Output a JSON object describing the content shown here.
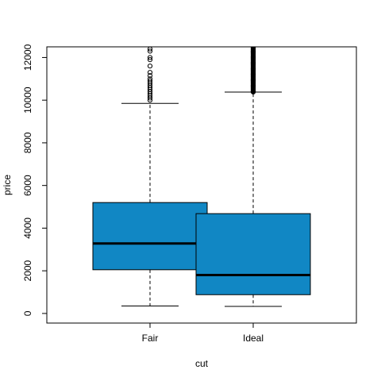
{
  "chart_data": {
    "type": "box",
    "xlabel": "cut",
    "ylabel": "price",
    "ylim": [
      -450,
      12500
    ],
    "y_ticks": [
      0,
      2000,
      4000,
      6000,
      8000,
      10000,
      12000
    ],
    "box_color": "#1187C4",
    "categories": [
      "Fair",
      "Ideal"
    ],
    "boxes": [
      {
        "category": "Fair",
        "whisker_low": 350,
        "q1": 2050,
        "median": 3280,
        "q3": 5200,
        "whisker_high": 9850,
        "outliers": [
          10000,
          10100,
          10200,
          10300,
          10400,
          10500,
          10600,
          10700,
          10800,
          10900,
          11000,
          11150,
          11300,
          11600,
          11900,
          12000,
          12300,
          12400
        ]
      },
      {
        "category": "Ideal",
        "whisker_low": 330,
        "q1": 880,
        "median": 1800,
        "q3": 4680,
        "whisker_high": 10380,
        "outliers_dense_range": [
          10380,
          12500
        ]
      }
    ]
  }
}
